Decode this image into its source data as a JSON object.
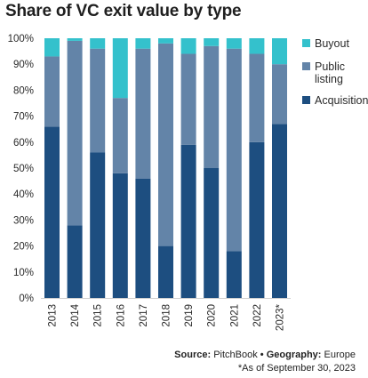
{
  "title": "Share of VC exit value by type",
  "source": {
    "source_label": "Source:",
    "source_value": "PitchBook",
    "separator": "•",
    "geo_label": "Geography:",
    "geo_value": "Europe"
  },
  "footnote": "*As of September 30, 2023",
  "chart_data": {
    "type": "bar",
    "stacked": true,
    "categories": [
      "2013",
      "2014",
      "2015",
      "2016",
      "2017",
      "2018",
      "2019",
      "2020",
      "2021",
      "2022",
      "2023*"
    ],
    "ylim": [
      0,
      100
    ],
    "yticks": [
      "0%",
      "10%",
      "20%",
      "30%",
      "40%",
      "50%",
      "60%",
      "70%",
      "80%",
      "90%",
      "100%"
    ],
    "grid": false,
    "legend_position": "right",
    "series": [
      {
        "name": "Acquisition",
        "color": "#1d4e80",
        "values": [
          66,
          28,
          56,
          48,
          46,
          20,
          59,
          50,
          18,
          60,
          67
        ]
      },
      {
        "name": "Public listing",
        "color": "#6384a8",
        "values": [
          27,
          71,
          40,
          29,
          50,
          78,
          35,
          47,
          78,
          34,
          23
        ]
      },
      {
        "name": "Buyout",
        "color": "#34c1cc",
        "values": [
          7,
          1,
          4,
          23,
          4,
          2,
          6,
          3,
          4,
          6,
          10
        ]
      }
    ],
    "legend": [
      {
        "label": "Buyout",
        "color": "#34c1cc"
      },
      {
        "label": "Public listing",
        "color": "#6384a8"
      },
      {
        "label": "Acquisition",
        "color": "#1d4e80"
      }
    ]
  }
}
